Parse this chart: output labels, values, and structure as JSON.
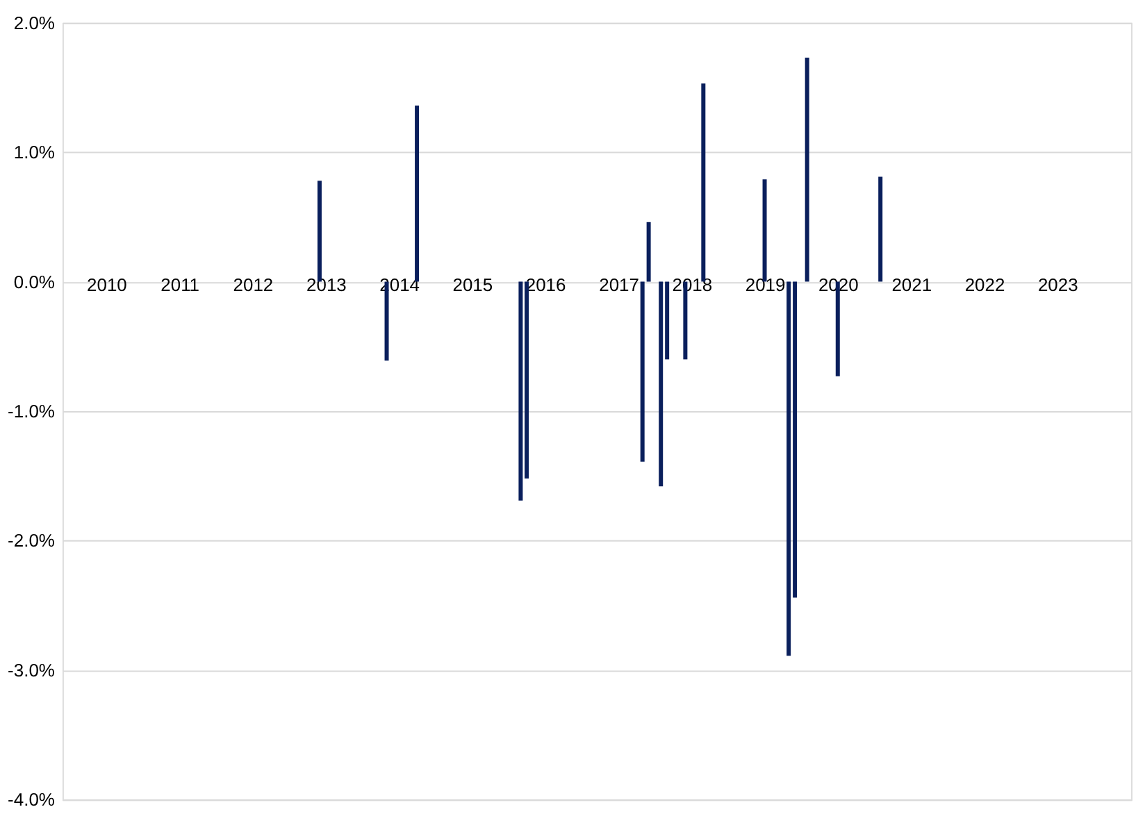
{
  "chart_data": {
    "type": "bar",
    "x": [
      "2012-12",
      "2013-11",
      "2014-04",
      "2015-09",
      "2015-10",
      "2017-05",
      "2017-06",
      "2017-08",
      "2017-09",
      "2017-12",
      "2018-03",
      "2019-01",
      "2019-05",
      "2019-06",
      "2019-08",
      "2020-01",
      "2020-08"
    ],
    "values": [
      0.78,
      -0.61,
      1.36,
      -1.69,
      -1.52,
      -1.39,
      0.46,
      -1.58,
      -0.6,
      -0.6,
      1.53,
      0.79,
      -2.89,
      -2.44,
      1.73,
      -0.73,
      0.81
    ],
    "color": "#0a1f5c",
    "xlim": [
      "2009-07",
      "2023-12"
    ],
    "xticks": [
      {
        "value": "2010",
        "label": "2010"
      },
      {
        "value": "2011",
        "label": "2011"
      },
      {
        "value": "2012",
        "label": "2012"
      },
      {
        "value": "2013",
        "label": "2013"
      },
      {
        "value": "2014",
        "label": "2014"
      },
      {
        "value": "2015",
        "label": "2015"
      },
      {
        "value": "2016",
        "label": "2016"
      },
      {
        "value": "2017",
        "label": "2017"
      },
      {
        "value": "2018",
        "label": "2018"
      },
      {
        "value": "2019",
        "label": "2019"
      },
      {
        "value": "2020",
        "label": "2020"
      },
      {
        "value": "2021",
        "label": "2021"
      },
      {
        "value": "2022",
        "label": "2022"
      },
      {
        "value": "2023",
        "label": "2023"
      }
    ],
    "ylim": [
      -4,
      2
    ],
    "yticks": [
      {
        "value": -4,
        "label": "-4.0%"
      },
      {
        "value": -3,
        "label": "-3.0%"
      },
      {
        "value": -2,
        "label": "-2.0%"
      },
      {
        "value": -1,
        "label": "-1.0%"
      },
      {
        "value": 0,
        "label": "0.0%"
      },
      {
        "value": 1,
        "label": "1.0%"
      },
      {
        "value": 2,
        "label": "2.0%"
      }
    ],
    "grid": "y"
  }
}
